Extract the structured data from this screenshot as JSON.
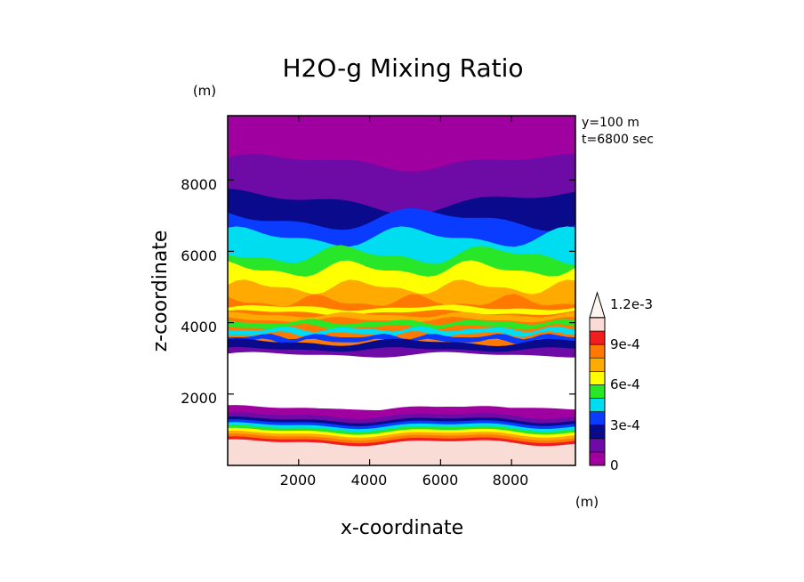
{
  "chart_data": {
    "type": "heatmap",
    "title": "H2O-g Mixing Ratio",
    "xlabel": "x-coordinate",
    "ylabel": "z-coordinate",
    "x_unit": "(m)",
    "y_unit": "(m)",
    "annotations": [
      "y=100  m",
      "t=6800 sec"
    ],
    "xlim": [
      0,
      9800
    ],
    "ylim": [
      0,
      9800
    ],
    "x_ticks": [
      2000,
      4000,
      6000,
      8000
    ],
    "y_ticks": [
      2000,
      4000,
      6000,
      8000
    ],
    "x_tick_labels": [
      "2000",
      "4000",
      "6000",
      "8000"
    ],
    "y_tick_labels": [
      "2000",
      "4000",
      "6000",
      "8000"
    ],
    "grid": false,
    "colorbar": {
      "levels": [
        0,
        0.00015,
        0.0003,
        0.00045,
        0.0006,
        0.00075,
        0.0009,
        0.00105,
        0.0012
      ],
      "colors": [
        "#a000a0",
        "#6e0aa5",
        "#0a0a8c",
        "#0a3cff",
        "#00dcf0",
        "#28e628",
        "#ffff00",
        "#ffaa00",
        "#ff7800",
        "#f01e1e",
        "#fadcd7"
      ],
      "tick_values": [
        0,
        0.0003,
        0.0006,
        0.0009,
        0.0012
      ],
      "tick_labels": [
        "0",
        "3e-4",
        "6e-4",
        "9e-4",
        "1.2e-3"
      ],
      "extend": "max"
    },
    "layers": [
      {
        "top_km": 9.8,
        "bottom_km": 0.0,
        "level": "0"
      },
      {
        "boundary": "surface",
        "band_top_km": 0.6,
        "color": "#fadcd7"
      },
      {
        "boundary": "dry",
        "range_km": [
          1.9,
          3.4
        ],
        "color": "#ffffff"
      },
      {
        "boundary": "moist",
        "range_km": [
          3.4,
          6.8
        ],
        "max_level": "1.2e-3"
      }
    ]
  }
}
